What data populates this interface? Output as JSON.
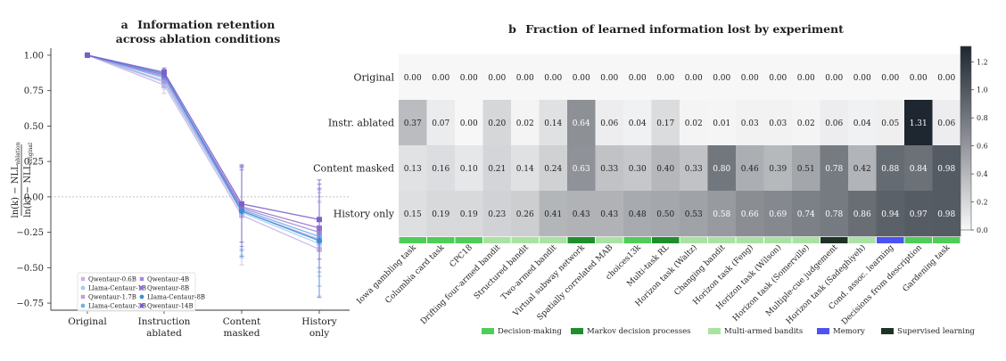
{
  "chart_data": [
    {
      "type": "line",
      "panel_letter": "a",
      "title": "Information retention",
      "subtitle": "across ablation conditions",
      "ylabel": "ln(k) − NLL_ablation / ln(k) − NLL_original",
      "ylabel_num": "ln(k) − NLL",
      "ylabel_num_sub": "ablation",
      "ylabel_den": "ln(k) − NLL",
      "ylabel_den_sub": "original",
      "categories": [
        "Original",
        "Instruction ablated",
        "Content masked",
        "History only"
      ],
      "category_lines": [
        [
          "Original"
        ],
        [
          "Instruction",
          "ablated"
        ],
        [
          "Content",
          "masked"
        ],
        [
          "History",
          "only"
        ]
      ],
      "ylim": [
        -0.8,
        1.05
      ],
      "yticks": [
        "1.00",
        "0.75",
        "0.50",
        "0.25",
        "0.00",
        "−0.25",
        "−0.50",
        "−0.75"
      ],
      "ytick_values": [
        1.0,
        0.75,
        0.5,
        0.25,
        0.0,
        -0.25,
        -0.5,
        -0.75
      ],
      "reference_line": 0.0,
      "legend_position": "lower-left",
      "series": [
        {
          "name": "Qwentaur-0.6B",
          "color": "#c9b4e6",
          "marker": "square",
          "values": [
            1.0,
            0.79,
            -0.13,
            -0.37
          ],
          "err_low": [
            0,
            0.06,
            0.35,
            0.33
          ],
          "err_high": [
            0,
            0.05,
            0.33,
            0.33
          ]
        },
        {
          "name": "Llama-Centaur-1B",
          "color": "#9fd0f2",
          "marker": "circle",
          "values": [
            1.0,
            0.81,
            -0.11,
            -0.33
          ],
          "err_low": [
            0,
            0.05,
            0.3,
            0.3
          ],
          "err_high": [
            0,
            0.05,
            0.3,
            0.3
          ]
        },
        {
          "name": "Qwentaur-1.7B",
          "color": "#b9a0e0",
          "marker": "square",
          "values": [
            1.0,
            0.82,
            -0.1,
            -0.3
          ],
          "err_low": [
            0,
            0.05,
            0.33,
            0.33
          ],
          "err_high": [
            0,
            0.05,
            0.33,
            0.33
          ]
        },
        {
          "name": "Llama-Centaur-3B",
          "color": "#6db3e8",
          "marker": "circle",
          "values": [
            1.0,
            0.84,
            -0.09,
            -0.28
          ],
          "err_low": [
            0,
            0.04,
            0.28,
            0.28
          ],
          "err_high": [
            0,
            0.04,
            0.28,
            0.28
          ]
        },
        {
          "name": "Qwentaur-4B",
          "color": "#a78ad9",
          "marker": "square",
          "values": [
            1.0,
            0.85,
            -0.08,
            -0.25
          ],
          "err_low": [
            0,
            0.04,
            0.3,
            0.28
          ],
          "err_high": [
            0,
            0.04,
            0.3,
            0.3
          ]
        },
        {
          "name": "Qwentaur-8B",
          "color": "#9475d1",
          "marker": "square",
          "values": [
            1.0,
            0.86,
            -0.07,
            -0.22
          ],
          "err_low": [
            0,
            0.03,
            0.28,
            0.28
          ],
          "err_high": [
            0,
            0.03,
            0.28,
            0.28
          ]
        },
        {
          "name": "Llama-Centaur-8B",
          "color": "#3f8fdc",
          "marker": "circle",
          "values": [
            1.0,
            0.87,
            -0.1,
            -0.31
          ],
          "err_low": [
            0,
            0.03,
            0.32,
            0.4
          ],
          "err_high": [
            0,
            0.03,
            0.32,
            0.4
          ]
        },
        {
          "name": "Qwentaur-14B",
          "color": "#7d5fc9",
          "marker": "square",
          "values": [
            1.0,
            0.88,
            -0.05,
            -0.16
          ],
          "err_low": [
            0,
            0.03,
            0.27,
            0.28
          ],
          "err_high": [
            0,
            0.03,
            0.27,
            0.28
          ]
        }
      ]
    },
    {
      "type": "heatmap",
      "panel_letter": "b",
      "title": "Fraction of learned information lost by experiment",
      "rows": [
        "Original",
        "Instr. ablated",
        "Content masked",
        "History only"
      ],
      "columns": [
        "Iowa gambling task",
        "Columbia card task",
        "CPC18",
        "Drifting four-armed bandit",
        "Structured bandit",
        "Two-armed bandit",
        "Virtual subway network",
        "Spatially correlated MAB",
        "choices13k",
        "Multi-task RL",
        "Horizon task (Waltz)",
        "Changing bandit",
        "Horizon task (Feng)",
        "Horizon task (Wilson)",
        "Horizon task (Somerville)",
        "Multiple-cue judgement",
        "Horizon task (Sadeghiyeh)",
        "Cond. assoc. learning",
        "Decisions from description",
        "Gardening task"
      ],
      "values": [
        [
          "0.00",
          "0.00",
          "0.00",
          "0.00",
          "0.00",
          "0.00",
          "0.00",
          "0.00",
          "0.00",
          "0.00",
          "0.00",
          "0.00",
          "0.00",
          "0.00",
          "0.00",
          "0.00",
          "0.00",
          "0.00",
          "0.00",
          "0.00"
        ],
        [
          "0.37",
          "0.07",
          "0.00",
          "0.20",
          "0.02",
          "0.14",
          "0.64",
          "0.06",
          "0.04",
          "0.17",
          "0.02",
          "0.01",
          "0.03",
          "0.03",
          "0.02",
          "0.06",
          "0.04",
          "0.05",
          "1.31",
          "0.06"
        ],
        [
          "0.13",
          "0.16",
          "0.10",
          "0.21",
          "0.14",
          "0.24",
          "0.63",
          "0.33",
          "0.30",
          "0.40",
          "0.33",
          "0.80",
          "0.46",
          "0.39",
          "0.51",
          "0.78",
          "0.42",
          "0.88",
          "0.84",
          "0.98"
        ],
        [
          "0.15",
          "0.19",
          "0.19",
          "0.23",
          "0.26",
          "0.41",
          "0.43",
          "0.43",
          "0.48",
          "0.50",
          "0.53",
          "0.58",
          "0.66",
          "0.69",
          "0.74",
          "0.78",
          "0.86",
          "0.94",
          "0.97",
          "0.98"
        ]
      ],
      "column_categories": [
        "Decision-making",
        "Decision-making",
        "Decision-making",
        "Multi-armed bandits",
        "Multi-armed bandits",
        "Multi-armed bandits",
        "Markov decision processes",
        "Multi-armed bandits",
        "Decision-making",
        "Markov decision processes",
        "Multi-armed bandits",
        "Multi-armed bandits",
        "Multi-armed bandits",
        "Multi-armed bandits",
        "Multi-armed bandits",
        "Supervised learning",
        "Multi-armed bandits",
        "Memory",
        "Decision-making",
        "Decision-making"
      ],
      "category_legend": [
        {
          "name": "Decision-making",
          "color": "#4fcd58"
        },
        {
          "name": "Markov decision processes",
          "color": "#1f8f2b"
        },
        {
          "name": "Multi-armed bandits",
          "color": "#a9e3a3"
        },
        {
          "name": "Memory",
          "color": "#4d52f2"
        },
        {
          "name": "Supervised learning",
          "color": "#1f3324"
        }
      ],
      "colorbar": {
        "range": [
          0,
          1.31
        ],
        "ticks": [
          "0.0",
          "0.2",
          "0.4",
          "0.6",
          "0.8",
          "1.0",
          "1.2"
        ],
        "tick_values": [
          0,
          0.2,
          0.4,
          0.6,
          0.8,
          1.0,
          1.2
        ],
        "color_low": "#f7f7f8",
        "color_high": "#1e2630"
      }
    }
  ]
}
